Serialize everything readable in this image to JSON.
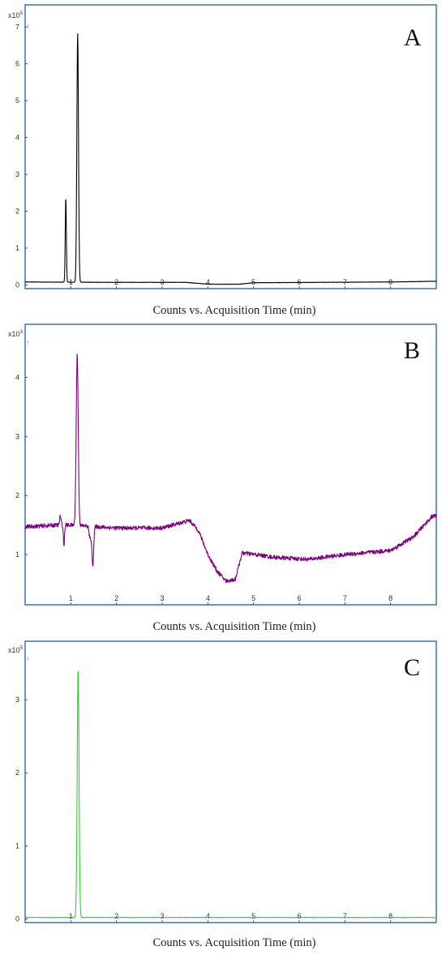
{
  "chart_data": [
    {
      "type": "line",
      "panel": "A",
      "xlabel": "Counts vs. Acquisition Time (min)",
      "multiplier_base": "x10",
      "multiplier_exp": "5",
      "xlim": [
        0,
        9
      ],
      "ylim": [
        -0.1,
        7.6
      ],
      "x_ticks": [
        1,
        2,
        3,
        4,
        5,
        6,
        7,
        8
      ],
      "y_ticks": [
        0,
        1,
        2,
        3,
        4,
        5,
        6,
        7
      ],
      "color": "#000000",
      "baseline": [
        [
          0,
          0.08
        ],
        [
          2,
          0.07
        ],
        [
          3.5,
          0.07
        ],
        [
          4.0,
          0.02
        ],
        [
          4.7,
          0.02
        ],
        [
          5.0,
          0.06
        ],
        [
          8.0,
          0.08
        ],
        [
          9,
          0.1
        ]
      ],
      "peaks": [
        {
          "rt": 0.89,
          "height": 2.3,
          "width": 0.012
        },
        {
          "rt": 1.15,
          "height": 6.75,
          "width": 0.018
        }
      ],
      "noise": 0.005
    },
    {
      "type": "line",
      "panel": "B",
      "xlabel": "Counts vs. Acquisition Time (min)",
      "multiplier_base": "x10",
      "multiplier_exp": "3",
      "xlim": [
        0,
        9
      ],
      "ylim": [
        0.15,
        4.9
      ],
      "x_ticks": [
        1,
        2,
        3,
        4,
        5,
        6,
        7,
        8
      ],
      "y_ticks": [
        1,
        2,
        3,
        4
      ],
      "color": "#800080",
      "baseline": [
        [
          0,
          1.47
        ],
        [
          0.7,
          1.5
        ],
        [
          1.0,
          1.5
        ],
        [
          2.0,
          1.45
        ],
        [
          3.0,
          1.45
        ],
        [
          3.6,
          1.58
        ],
        [
          3.8,
          1.4
        ],
        [
          4.0,
          1.0
        ],
        [
          4.2,
          0.72
        ],
        [
          4.4,
          0.55
        ],
        [
          4.6,
          0.58
        ],
        [
          4.75,
          1.03
        ],
        [
          5.5,
          0.95
        ],
        [
          6.2,
          0.92
        ],
        [
          7.0,
          1.0
        ],
        [
          8.0,
          1.07
        ],
        [
          8.5,
          1.3
        ],
        [
          8.9,
          1.64
        ],
        [
          9.0,
          1.66
        ]
      ],
      "peaks": [
        {
          "rt": 0.77,
          "height": 0.15,
          "width": 0.015
        },
        {
          "rt": 0.85,
          "height": -0.35,
          "width": 0.012
        },
        {
          "rt": 1.14,
          "height": 2.9,
          "width": 0.022
        },
        {
          "rt": 1.42,
          "height": -0.2,
          "width": 0.02
        },
        {
          "rt": 1.48,
          "height": -0.65,
          "width": 0.02
        }
      ],
      "noise": 0.035
    },
    {
      "type": "line",
      "panel": "C",
      "xlabel": "Counts vs. Acquisition Time (min)",
      "multiplier_base": "x10",
      "multiplier_exp": "5",
      "xlim": [
        0,
        9
      ],
      "ylim": [
        -0.05,
        3.8
      ],
      "x_ticks": [
        1,
        2,
        3,
        4,
        5,
        6,
        7,
        8
      ],
      "y_ticks": [
        0,
        1,
        2,
        3
      ],
      "color": "#33cc33",
      "baseline": [
        [
          0,
          0.02
        ],
        [
          9,
          0.02
        ]
      ],
      "peaks": [
        {
          "rt": 1.16,
          "height": 3.4,
          "width": 0.02
        }
      ],
      "noise": 0.003
    }
  ]
}
